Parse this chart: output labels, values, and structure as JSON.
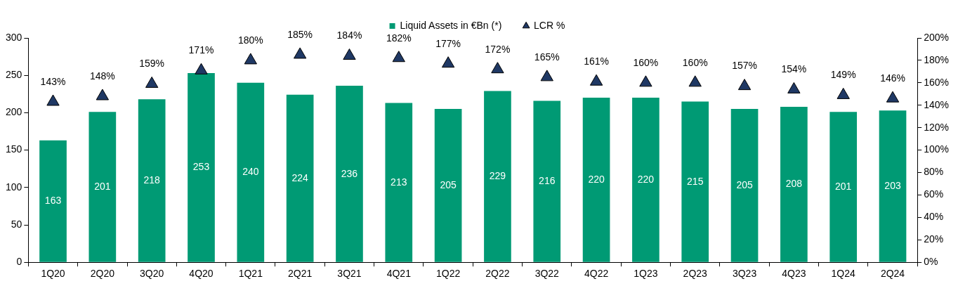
{
  "chart_data": {
    "type": "bar",
    "categories": [
      "1Q20",
      "2Q20",
      "3Q20",
      "4Q20",
      "1Q21",
      "2Q21",
      "3Q21",
      "4Q21",
      "1Q22",
      "2Q22",
      "3Q22",
      "4Q22",
      "1Q23",
      "2Q23",
      "3Q23",
      "4Q23",
      "1Q24",
      "2Q24"
    ],
    "series": [
      {
        "name": "Liquid Assets in €Bn (*)",
        "color": "#009a74",
        "values": [
          163,
          201,
          218,
          253,
          240,
          224,
          236,
          213,
          205,
          229,
          216,
          220,
          220,
          215,
          205,
          208,
          201,
          203
        ],
        "value_labels": [
          "163",
          "201",
          "218",
          "253",
          "240",
          "224",
          "236",
          "213",
          "205",
          "229",
          "216",
          "220",
          "220",
          "215",
          "205",
          "208",
          "201",
          "203"
        ]
      },
      {
        "name": "LCR %",
        "type": "scatter",
        "axis": "y2",
        "color": "#1f3864",
        "marker": "triangle",
        "values": [
          143,
          148,
          159,
          171,
          180,
          185,
          184,
          182,
          177,
          172,
          165,
          161,
          160,
          160,
          157,
          154,
          149,
          146
        ],
        "value_labels": [
          "143%",
          "148%",
          "159%",
          "171%",
          "180%",
          "185%",
          "184%",
          "182%",
          "177%",
          "172%",
          "165%",
          "161%",
          "160%",
          "160%",
          "157%",
          "154%",
          "149%",
          "146%"
        ]
      }
    ],
    "ylim": [
      0,
      300
    ],
    "yticks": [
      0,
      50,
      100,
      150,
      200,
      250,
      300
    ],
    "y2lim": [
      0,
      200
    ],
    "y2ticks": [
      {
        "value": 0,
        "label": "0%"
      },
      {
        "value": 20,
        "label": "20%"
      },
      {
        "value": 40,
        "label": "40%"
      },
      {
        "value": 60,
        "label": "60%"
      },
      {
        "value": 80,
        "label": "80%"
      },
      {
        "value": 100,
        "label": "100%"
      },
      {
        "value": 120,
        "label": "120%"
      },
      {
        "value": 140,
        "label": "140%"
      },
      {
        "value": 160,
        "label": "160%"
      },
      {
        "value": 180,
        "label": "180%"
      },
      {
        "value": 200,
        "label": "200%"
      }
    ],
    "legend": "top",
    "grid": false
  }
}
